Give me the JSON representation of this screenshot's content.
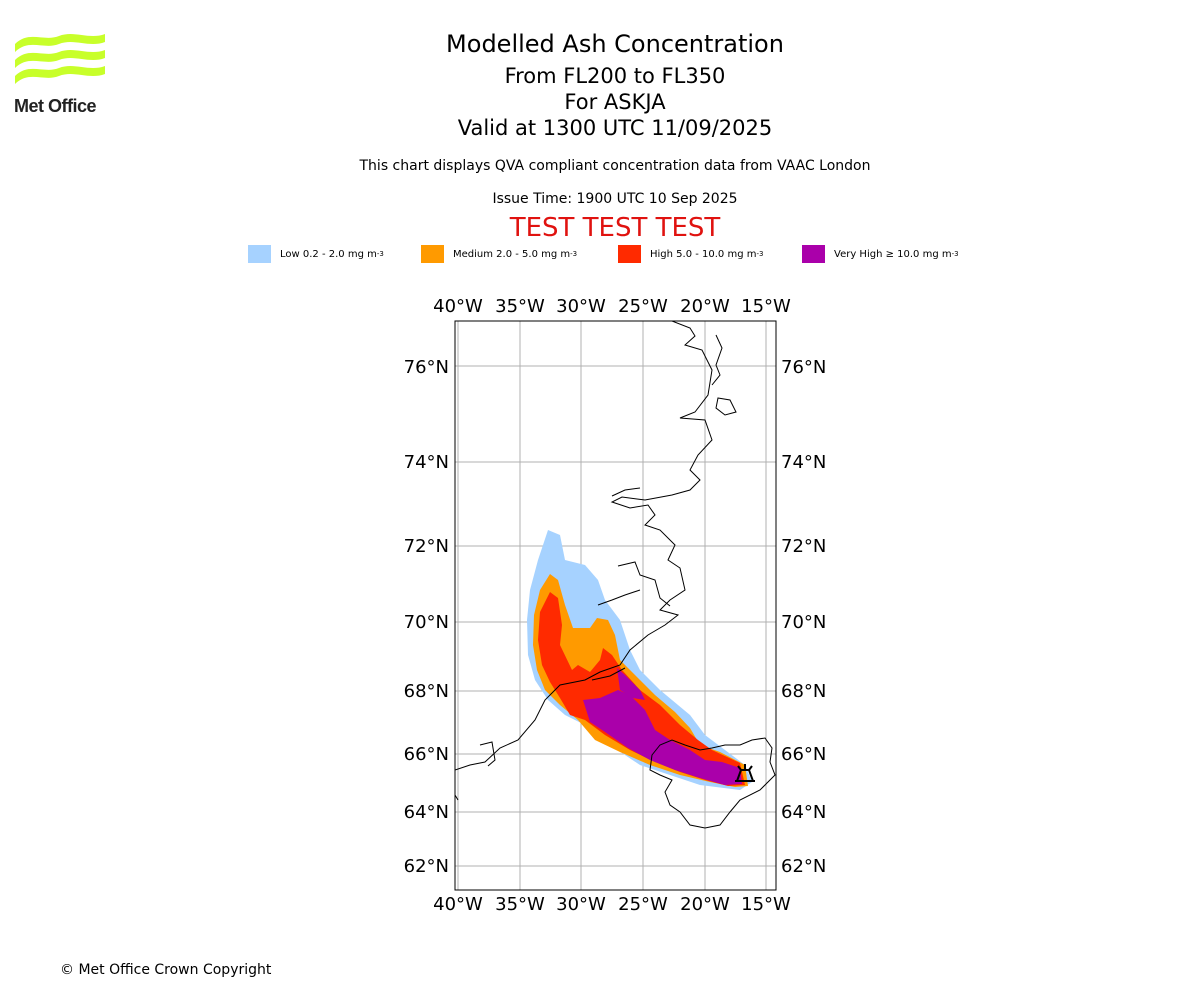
{
  "header": {
    "title": "Modelled Ash Concentration",
    "level_range": "From FL200 to FL350",
    "volcano": "For ASKJA",
    "valid_time": "Valid at 1300 UTC 11/09/2025",
    "note": "This chart displays QVA compliant concentration data from VAAC London",
    "issue_time": "Issue Time: 1900 UTC 10 Sep 2025",
    "test_banner": "TEST TEST TEST"
  },
  "logo": {
    "text": "Met Office",
    "color": "#c8ff2a"
  },
  "legend": [
    {
      "label": "Low 0.2 - 2.0 mg m",
      "sup": "-3",
      "color": "#a6d2ff"
    },
    {
      "label": "Medium 2.0 - 5.0 mg m",
      "sup": "-3",
      "color": "#ff9a00"
    },
    {
      "label": "High 5.0 - 10.0 mg m",
      "sup": "-3",
      "color": "#ff2a00"
    },
    {
      "label": "Very High  ≥  10.0 mg m",
      "sup": "-3",
      "color": "#aa00aa"
    }
  ],
  "map": {
    "lon_ticks": [
      "40°W",
      "35°W",
      "30°W",
      "25°W",
      "20°W",
      "15°W"
    ],
    "lat_ticks": [
      "76°N",
      "74°N",
      "72°N",
      "70°N",
      "68°N",
      "66°N",
      "64°N",
      "62°N"
    ],
    "volcano_symbol": "volcano-icon"
  },
  "footer": {
    "copyright": "© Met Office Crown Copyright"
  }
}
